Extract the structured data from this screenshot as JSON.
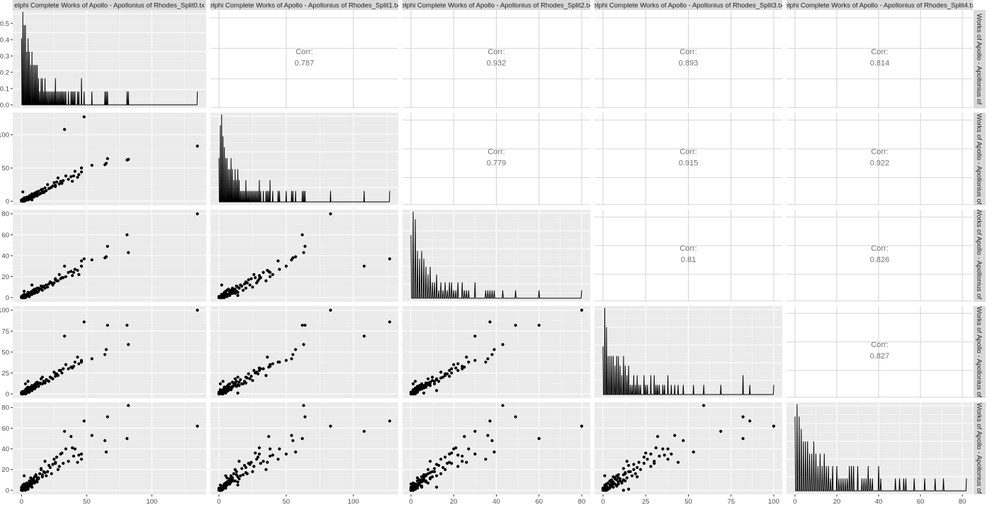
{
  "chart_data": {
    "type": "scatter-matrix",
    "variables": [
      "elphi Complete Works of Apollo - Apollonius of Rhodes_Split0.tx",
      "elphi Complete Works of Apollo - Apollonius of Rhodes_Split1.tx",
      "elphi Complete Works of Apollo - Apollonius of Rhodes_Split2.tx",
      "elphi Complete Works of Apollo - Apollonius of Rhodes_Split3.tx",
      "elphi Complete Works of Apollo - Apollonius of Rhodes_Split4.tx"
    ],
    "row_strip_labels": [
      "Works of Apollo - Apollonius of",
      "Works of Apollo - Apollonius of",
      "Works of Apollo - Apollonius of I",
      "Works of Apollo - Apollonius of",
      "Works of Apollo - Apollonius of"
    ],
    "corr_label": "Corr:",
    "correlations": [
      {
        "row": 0,
        "col": 1,
        "value": "0.787"
      },
      {
        "row": 0,
        "col": 2,
        "value": "0.932"
      },
      {
        "row": 0,
        "col": 3,
        "value": "0.893"
      },
      {
        "row": 0,
        "col": 4,
        "value": "0.814"
      },
      {
        "row": 1,
        "col": 2,
        "value": "0.779"
      },
      {
        "row": 1,
        "col": 3,
        "value": "0.915"
      },
      {
        "row": 1,
        "col": 4,
        "value": "0.922"
      },
      {
        "row": 2,
        "col": 3,
        "value": "0.81"
      },
      {
        "row": 2,
        "col": 4,
        "value": "0.826"
      },
      {
        "row": 3,
        "col": 4,
        "value": "0.827"
      }
    ],
    "axis_ranges": [
      [
        -6.75,
        141.75
      ],
      [
        -6.35,
        133.35
      ],
      [
        -4,
        84
      ],
      [
        -5,
        105
      ],
      [
        -4.05,
        85.05
      ]
    ],
    "x_ticks": [
      [
        0,
        50,
        100
      ],
      [
        0,
        50,
        100
      ],
      [
        0,
        20,
        40,
        60,
        80
      ],
      [
        0,
        25,
        50,
        75,
        100
      ],
      [
        0,
        20,
        40,
        60,
        80
      ]
    ],
    "y_ticks": [
      [
        "0.0",
        "0.1",
        "0.2",
        "0.3",
        "0.4",
        "0.5"
      ],
      [
        0,
        50,
        100
      ],
      [
        0,
        20,
        40,
        60,
        80
      ],
      [
        0,
        25,
        50,
        75,
        100
      ],
      [
        0,
        20,
        40,
        60,
        80
      ]
    ],
    "density_ylim": [
      0,
      0.52
    ],
    "grid": true,
    "background": "#EBEBEB",
    "point_color": "#000000",
    "corr_text_color": "#737373",
    "observations": [
      [
        135,
        83,
        80,
        100,
        62
      ],
      [
        48,
        127,
        37,
        86,
        67
      ],
      [
        33,
        108,
        30,
        69,
        57
      ],
      [
        82,
        63,
        43,
        59,
        82
      ],
      [
        81,
        62,
        60,
        82,
        50
      ],
      [
        66,
        64,
        49,
        82,
        71
      ],
      [
        65,
        57,
        39,
        53,
        37
      ],
      [
        64,
        55,
        38,
        47,
        48
      ],
      [
        54,
        54,
        36,
        42,
        53
      ],
      [
        46,
        50,
        30,
        40,
        35
      ],
      [
        41,
        45,
        27,
        38,
        40
      ],
      [
        44,
        40,
        22,
        36,
        34
      ],
      [
        38,
        37,
        25,
        32,
        52
      ],
      [
        34,
        38,
        20,
        35,
        40
      ],
      [
        36,
        33,
        24,
        30,
        28
      ],
      [
        30,
        30,
        18,
        28,
        35
      ],
      [
        28,
        35,
        16,
        22,
        20
      ],
      [
        25,
        28,
        14,
        26,
        30
      ],
      [
        24,
        23,
        12,
        18,
        25
      ],
      [
        22,
        20,
        15,
        20,
        22
      ],
      [
        20,
        25,
        10,
        16,
        18
      ],
      [
        18,
        15,
        9,
        14,
        28
      ],
      [
        16,
        18,
        7,
        12,
        15
      ],
      [
        15,
        12,
        8,
        18,
        20
      ],
      [
        43,
        36,
        26,
        44,
        27
      ],
      [
        46,
        44,
        35,
        38,
        30
      ],
      [
        40,
        38,
        24,
        33,
        33
      ],
      [
        39,
        30,
        21,
        31,
        41
      ],
      [
        31,
        27,
        19,
        25,
        36
      ],
      [
        26,
        22,
        17,
        24,
        26
      ],
      [
        13,
        10,
        6,
        9,
        12
      ],
      [
        12,
        14,
        5,
        11,
        8
      ],
      [
        11,
        9,
        7,
        8,
        14
      ],
      [
        10,
        12,
        4,
        10,
        9
      ],
      [
        9,
        8,
        6,
        7,
        11
      ],
      [
        8,
        7,
        3,
        9,
        6
      ],
      [
        7,
        9,
        5,
        6,
        8
      ],
      [
        6,
        5,
        4,
        5,
        7
      ],
      [
        5,
        6,
        2,
        4,
        5
      ],
      [
        4,
        3,
        3,
        5,
        4
      ],
      [
        3,
        4,
        1,
        2,
        3
      ],
      [
        2,
        2,
        2,
        3,
        2
      ],
      [
        1,
        1,
        0,
        1,
        1
      ],
      [
        0,
        0,
        0,
        0,
        0
      ],
      [
        1,
        0,
        1,
        0,
        2
      ],
      [
        0,
        1,
        0,
        2,
        0
      ],
      [
        2,
        1,
        1,
        1,
        1
      ],
      [
        3,
        2,
        2,
        1,
        3
      ],
      [
        1,
        2,
        0,
        1,
        0
      ],
      [
        0,
        0,
        1,
        0,
        1
      ],
      [
        14,
        11,
        8,
        13,
        16
      ],
      [
        13,
        15,
        9,
        10,
        11
      ],
      [
        12,
        8,
        5,
        12,
        10
      ],
      [
        11,
        13,
        6,
        9,
        15
      ],
      [
        10,
        7,
        8,
        11,
        7
      ],
      [
        9,
        10,
        4,
        8,
        10
      ],
      [
        8,
        11,
        6,
        10,
        9
      ],
      [
        7,
        6,
        3,
        7,
        12
      ],
      [
        6,
        8,
        2,
        6,
        6
      ],
      [
        5,
        4,
        4,
        8,
        5
      ],
      [
        4,
        6,
        1,
        3,
        7
      ],
      [
        3,
        5,
        2,
        4,
        2
      ],
      [
        2,
        3,
        3,
        2,
        4
      ],
      [
        1,
        3,
        1,
        3,
        1
      ],
      [
        0,
        2,
        0,
        1,
        3
      ],
      [
        17,
        13,
        11,
        15,
        18
      ],
      [
        19,
        16,
        12,
        17,
        14
      ],
      [
        21,
        19,
        13,
        15,
        24
      ],
      [
        16,
        14,
        10,
        20,
        13
      ],
      [
        18,
        20,
        9,
        13,
        17
      ],
      [
        15,
        17,
        11,
        12,
        21
      ],
      [
        12,
        10,
        9,
        14,
        12
      ],
      [
        11,
        12,
        7,
        13,
        9
      ],
      [
        10,
        9,
        5,
        6,
        13
      ],
      [
        9,
        6,
        7,
        9,
        8
      ],
      [
        8,
        9,
        4,
        5,
        10
      ],
      [
        7,
        4,
        5,
        8,
        4
      ],
      [
        6,
        7,
        3,
        4,
        9
      ],
      [
        5,
        5,
        5,
        6,
        3
      ],
      [
        4,
        4,
        2,
        7,
        6
      ],
      [
        3,
        1,
        1,
        5,
        5
      ],
      [
        2,
        4,
        0,
        2,
        6
      ],
      [
        1,
        2,
        2,
        0,
        2
      ],
      [
        0,
        1,
        1,
        1,
        0
      ],
      [
        2,
        0,
        0,
        2,
        1
      ],
      [
        5,
        2,
        3,
        3,
        2
      ],
      [
        6,
        3,
        1,
        2,
        4
      ],
      [
        4,
        2,
        2,
        1,
        1
      ],
      [
        3,
        3,
        0,
        0,
        2
      ],
      [
        1,
        1,
        1,
        2,
        0
      ],
      [
        26,
        24,
        18,
        21,
        27
      ],
      [
        29,
        26,
        22,
        28,
        23
      ],
      [
        23,
        21,
        14,
        19,
        16
      ],
      [
        27,
        29,
        16,
        24,
        32
      ],
      [
        32,
        31,
        19,
        30,
        26
      ],
      [
        5,
        3,
        2,
        15,
        1
      ],
      [
        3,
        1,
        1,
        12,
        0
      ],
      [
        2,
        5,
        6,
        1,
        14
      ],
      [
        8,
        2,
        12,
        4,
        3
      ],
      [
        1,
        14,
        2,
        1,
        5
      ]
    ]
  }
}
